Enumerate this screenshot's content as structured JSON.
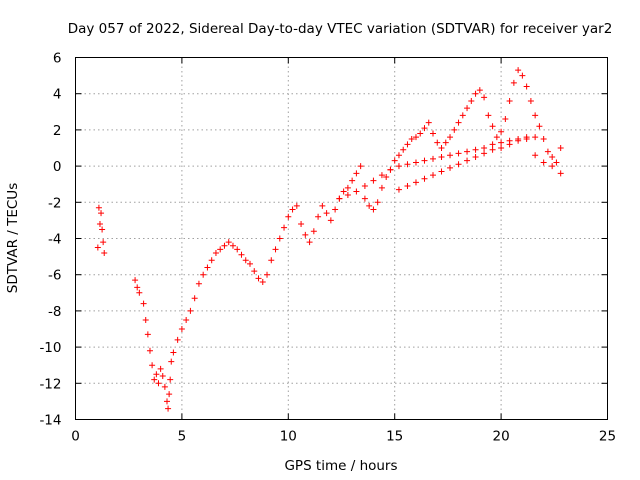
{
  "chart_data": {
    "type": "scatter",
    "title": "Day 057 of 2022, Sidereal Day-to-day VTEC variation (SDTVAR) for receiver yar2",
    "xlabel": "GPS time / hours",
    "ylabel": "SDTVAR / TECUs",
    "xlim": [
      0,
      25
    ],
    "ylim": [
      -14,
      6
    ],
    "xticks": [
      0,
      5,
      10,
      15,
      20,
      25
    ],
    "xtick_labels": [
      "0",
      "5",
      "10",
      "15",
      "20",
      "25"
    ],
    "yticks": [
      -14,
      -12,
      -10,
      -8,
      -6,
      -4,
      -2,
      0,
      2,
      4,
      6
    ],
    "ytick_labels": [
      "-14",
      "-12",
      "-10",
      "-8",
      "-6",
      "-4",
      "-2",
      "0",
      "2",
      "4",
      "6"
    ],
    "grid": true,
    "marker": "+",
    "color": "#ff0000",
    "series": [
      {
        "name": "SDTVAR",
        "x": [
          1.05,
          1.1,
          1.15,
          1.2,
          1.25,
          1.3,
          1.35,
          2.8,
          2.9,
          3.0,
          3.2,
          3.3,
          3.4,
          3.5,
          3.6,
          3.7,
          3.8,
          3.9,
          4.0,
          4.1,
          4.2,
          4.3,
          4.35,
          4.4,
          4.45,
          4.5,
          4.6,
          4.8,
          5.0,
          5.2,
          5.4,
          5.6,
          5.8,
          6.0,
          6.2,
          6.4,
          6.6,
          6.8,
          7.0,
          7.2,
          7.4,
          7.6,
          7.8,
          8.0,
          8.2,
          8.4,
          8.6,
          8.8,
          9.0,
          9.2,
          9.4,
          9.6,
          9.8,
          10.0,
          10.2,
          10.4,
          10.6,
          10.8,
          11.0,
          11.2,
          11.4,
          11.6,
          11.8,
          12.0,
          12.2,
          12.4,
          12.6,
          12.8,
          13.0,
          13.2,
          13.4,
          13.6,
          13.8,
          14.0,
          14.2,
          14.4,
          14.6,
          14.8,
          15.0,
          15.2,
          15.4,
          15.6,
          15.8,
          16.0,
          16.2,
          16.4,
          16.6,
          16.8,
          17.0,
          17.2,
          17.4,
          17.6,
          17.8,
          18.0,
          18.2,
          18.4,
          18.6,
          18.8,
          19.0,
          19.2,
          19.4,
          19.6,
          19.8,
          20.0,
          20.2,
          20.4,
          20.6,
          20.8,
          21.0,
          21.2,
          21.4,
          21.6,
          21.8,
          22.0,
          22.2,
          22.4,
          22.6,
          22.8,
          12.4,
          12.8,
          13.2,
          13.6,
          14.0,
          14.4,
          14.8,
          15.2,
          15.6,
          16.0,
          16.4,
          16.8,
          17.2,
          17.6,
          18.0,
          18.4,
          18.8,
          19.2,
          19.6,
          20.0,
          20.4,
          20.8,
          21.2,
          21.6,
          22.0,
          22.4,
          22.8,
          15.2,
          15.6,
          16.0,
          16.4,
          16.8,
          17.2,
          17.6,
          18.0,
          18.4,
          18.8,
          19.2,
          19.6,
          20.0,
          20.4,
          20.8,
          21.2,
          21.6
        ],
        "y": [
          -4.5,
          -2.3,
          -3.2,
          -2.6,
          -3.5,
          -4.2,
          -4.8,
          -6.3,
          -6.7,
          -7.0,
          -7.6,
          -8.5,
          -9.3,
          -10.2,
          -11.0,
          -11.8,
          -11.5,
          -12.0,
          -11.2,
          -11.6,
          -12.2,
          -13.0,
          -13.4,
          -12.6,
          -11.8,
          -10.8,
          -10.3,
          -9.6,
          -9.0,
          -8.5,
          -8.0,
          -7.3,
          -6.5,
          -6.0,
          -5.6,
          -5.2,
          -4.8,
          -4.6,
          -4.4,
          -4.2,
          -4.4,
          -4.6,
          -4.9,
          -5.2,
          -5.4,
          -5.8,
          -6.2,
          -6.4,
          -6.0,
          -5.2,
          -4.6,
          -4.0,
          -3.4,
          -2.8,
          -2.4,
          -2.2,
          -3.2,
          -3.8,
          -4.2,
          -3.6,
          -2.8,
          -2.2,
          -2.6,
          -3.0,
          -2.4,
          -1.8,
          -1.4,
          -1.2,
          -0.8,
          -0.4,
          0.0,
          -1.8,
          -2.2,
          -2.4,
          -2.0,
          -1.2,
          -0.6,
          -0.2,
          0.3,
          0.6,
          0.9,
          1.2,
          1.5,
          1.6,
          1.8,
          2.1,
          2.4,
          1.8,
          1.3,
          1.0,
          1.3,
          1.6,
          2.0,
          2.4,
          2.8,
          3.2,
          3.6,
          4.0,
          4.2,
          3.8,
          2.8,
          2.2,
          1.6,
          1.9,
          2.6,
          3.6,
          4.6,
          5.3,
          5.0,
          4.4,
          3.6,
          2.8,
          2.2,
          1.5,
          0.8,
          0.5,
          0.2,
          1.0,
          -1.8,
          -1.6,
          -1.4,
          -1.1,
          -0.8,
          -0.5,
          -0.2,
          0.0,
          0.1,
          0.2,
          0.3,
          0.4,
          0.5,
          0.6,
          0.7,
          0.8,
          0.9,
          1.0,
          1.2,
          1.3,
          1.4,
          1.5,
          1.6,
          0.6,
          0.2,
          0.0,
          -0.4,
          -1.3,
          -1.1,
          -0.9,
          -0.7,
          -0.5,
          -0.3,
          -0.1,
          0.1,
          0.3,
          0.5,
          0.7,
          0.9,
          1.0,
          1.2,
          1.4,
          1.5,
          1.6
        ]
      }
    ]
  }
}
